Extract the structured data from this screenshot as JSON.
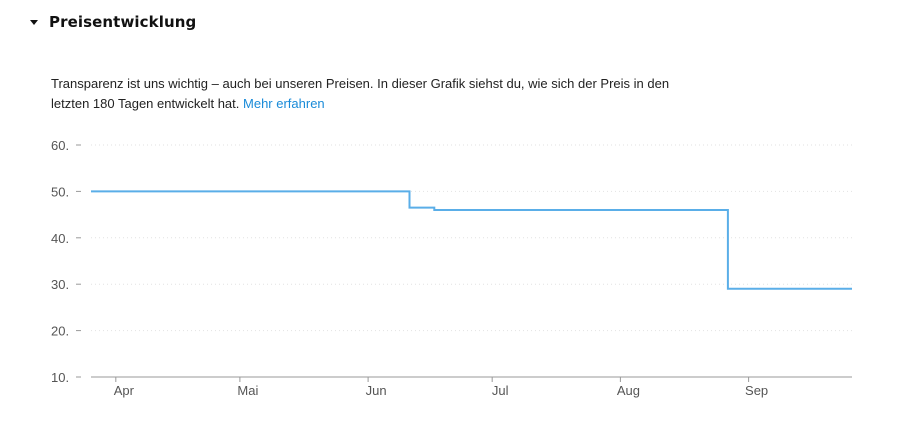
{
  "section": {
    "title": "Preisentwicklung"
  },
  "description": {
    "text": "Transparenz ist uns wichtig – auch bei unseren Preisen. In dieser Grafik siehst du, wie sich der Preis in den letzten 180 Tagen entwickelt hat.",
    "link_label": "Mehr erfahren"
  },
  "colors": {
    "line": "#5aaee8",
    "link": "#1a8bd8",
    "grid": "#e2e2e2",
    "axis": "#999999"
  },
  "chart_data": {
    "type": "line",
    "step": true,
    "title": "",
    "xlabel": "",
    "ylabel": "",
    "ylim": [
      10,
      60
    ],
    "yticks": [
      60,
      50,
      40,
      30,
      20,
      10
    ],
    "ytick_labels": [
      "60.",
      "50.",
      "40.",
      "30.",
      "20.",
      "10."
    ],
    "xtick_labels": [
      "Apr",
      "Mai",
      "Jun",
      "Jul",
      "Aug",
      "Sep"
    ],
    "xtick_dates": [
      "2023-04-01",
      "2023-05-01",
      "2023-06-01",
      "2023-07-01",
      "2023-08-01",
      "2023-09-01"
    ],
    "grid": true,
    "series": [
      {
        "x": [
          "2023-03-26",
          "2023-06-11",
          "2023-06-17",
          "2023-08-27",
          "2023-09-26"
        ],
        "values": [
          50.0,
          46.5,
          46.0,
          29.0,
          29.0
        ]
      }
    ]
  }
}
